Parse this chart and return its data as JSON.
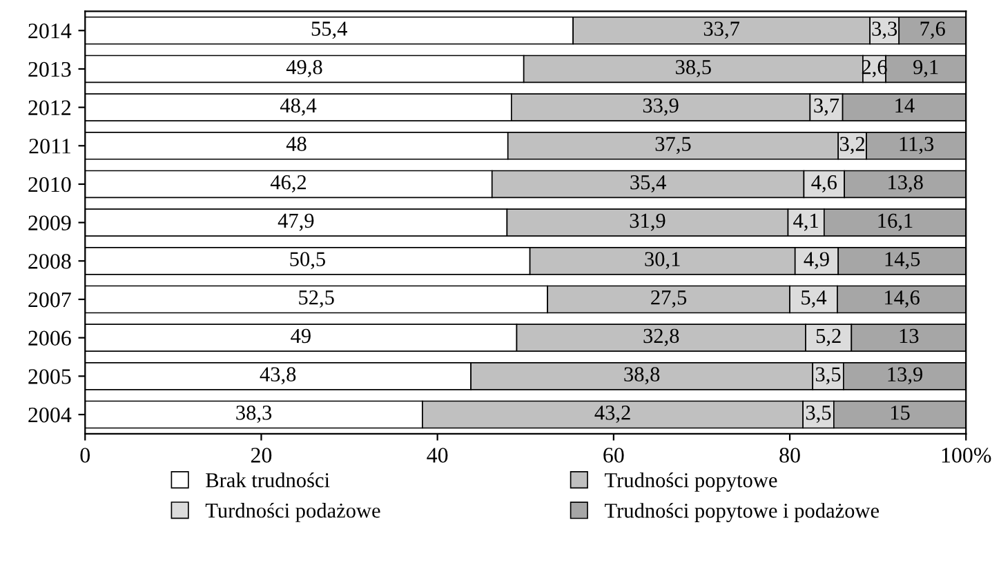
{
  "chart_data": {
    "type": "bar",
    "orientation": "horizontal",
    "stacked": true,
    "categories": [
      "2014",
      "2013",
      "2012",
      "2011",
      "2010",
      "2009",
      "2008",
      "2007",
      "2006",
      "2005",
      "2004"
    ],
    "series": [
      {
        "name": "Brak trudności",
        "color": "#ffffff",
        "values": [
          55.4,
          49.8,
          48.4,
          48,
          46.2,
          47.9,
          50.5,
          52.5,
          49,
          43.8,
          38.3
        ],
        "value_labels": [
          "55,4",
          "49,8",
          "48,4",
          "48",
          "46,2",
          "47,9",
          "50,5",
          "52,5",
          "49",
          "43,8",
          "38,3"
        ]
      },
      {
        "name": "Trudności popytowe",
        "color": "#c0c0c0",
        "values": [
          33.7,
          38.5,
          33.9,
          37.5,
          35.4,
          31.9,
          30.1,
          27.5,
          32.8,
          38.8,
          43.2
        ],
        "value_labels": [
          "33,7",
          "38,5",
          "33,9",
          "37,5",
          "35,4",
          "31,9",
          "30,1",
          "27,5",
          "32,8",
          "38,8",
          "43,2"
        ]
      },
      {
        "name": "Turdności podażowe",
        "color": "#dcdcdc",
        "values": [
          3.3,
          2.6,
          3.7,
          3.2,
          4.6,
          4.1,
          4.9,
          5.4,
          5.2,
          3.5,
          3.5
        ],
        "value_labels": [
          "3,3",
          "2,6",
          "3,7",
          "3,2",
          "4,6",
          "4,1",
          "4,9",
          "5,4",
          "5,2",
          "3,5",
          "3,5"
        ]
      },
      {
        "name": "Trudności popytowe i podażowe",
        "color": "#a6a6a6",
        "values": [
          7.6,
          9.1,
          14,
          11.3,
          13.8,
          16.1,
          14.5,
          14.6,
          13,
          13.9,
          15
        ],
        "value_labels": [
          "7,6",
          "9,1",
          "14",
          "11,3",
          "13,8",
          "16,1",
          "14,5",
          "14,6",
          "13",
          "13,9",
          "15"
        ]
      }
    ],
    "xlim": [
      0,
      100
    ],
    "xticks": [
      0,
      20,
      40,
      60,
      80,
      {
        "value": 100,
        "label": "100%"
      }
    ],
    "grid": false,
    "legend": "bottom"
  }
}
